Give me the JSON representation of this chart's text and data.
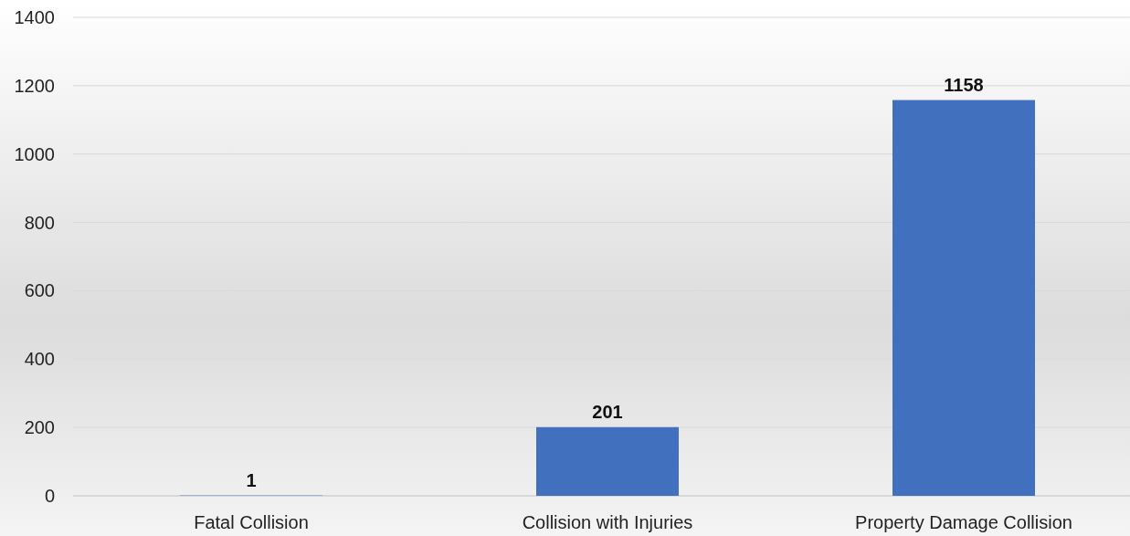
{
  "chart_data": {
    "type": "bar",
    "categories": [
      "Fatal Collision",
      "Collision with Injuries",
      "Property Damage Collision"
    ],
    "values": [
      1,
      201,
      1158
    ],
    "color": "#4070be",
    "ylim": [
      0,
      1400
    ],
    "yticks": [
      0,
      200,
      400,
      600,
      800,
      1000,
      1200,
      1400
    ],
    "grid": "y",
    "data_labels": true
  }
}
